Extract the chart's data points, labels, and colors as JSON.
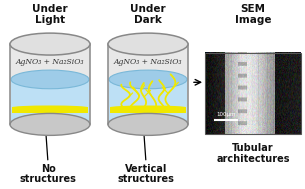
{
  "bg_color": "#ffffff",
  "title1": "Under\nLight",
  "title2": "Under\nDark",
  "title3": "SEM\nImage",
  "label1": "No\nstructures",
  "label2": "Vertical\nstructures",
  "label3": "Tubular\narchitectures",
  "formula": "AgNO₃ + Na₂SiO₃",
  "liquid_color": "#bde0f5",
  "liquid_surface_color": "#9ecce8",
  "deposit_color": "#f0e800",
  "cylinder_wall": "#888888",
  "cylinder_top_fill": "#e0e0e0",
  "cylinder_bottom_fill": "#c8c8c8",
  "scale_bar_text": "100μm",
  "arrow_color": "#222222",
  "text_color": "#111111",
  "title_fontsize": 7.5,
  "label_fontsize": 7,
  "formula_fontsize": 5.5
}
